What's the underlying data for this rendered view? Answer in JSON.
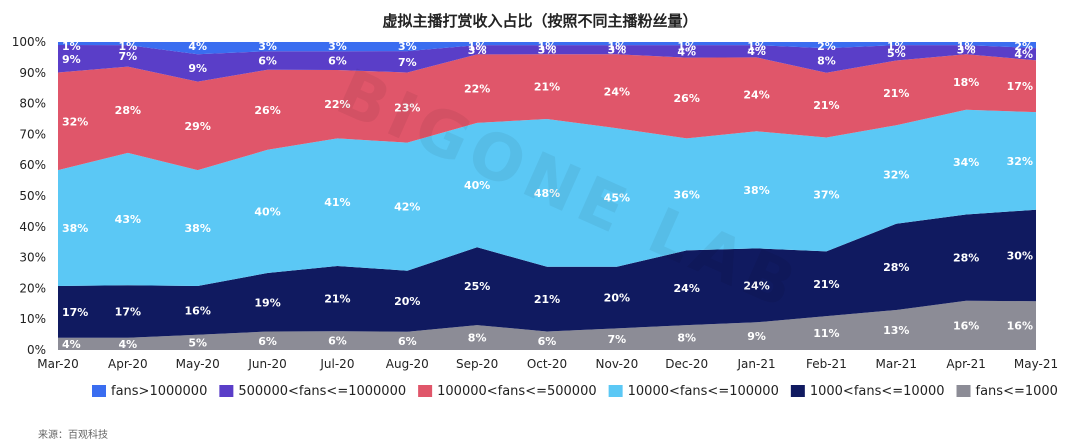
{
  "chart_data": {
    "type": "area",
    "stacked": true,
    "percent": true,
    "title": "虚拟主播打赏收入占比（按照不同主播粉丝量）",
    "categories": [
      "Mar-20",
      "Apr-20",
      "May-20",
      "Jun-20",
      "Jul-20",
      "Aug-20",
      "Sep-20",
      "Oct-20",
      "Nov-20",
      "Dec-20",
      "Jan-21",
      "Feb-21",
      "Mar-21",
      "Apr-21",
      "May-21"
    ],
    "y_ticks": [
      "0%",
      "10%",
      "20%",
      "30%",
      "40%",
      "50%",
      "60%",
      "70%",
      "80%",
      "90%",
      "100%"
    ],
    "ylim": [
      0,
      100
    ],
    "legend_position": "bottom",
    "series": [
      {
        "name": "fans<=1000",
        "color": "#8c8c96",
        "values": [
          4,
          4,
          5,
          6,
          6,
          6,
          8,
          6,
          7,
          8,
          9,
          11,
          13,
          16,
          16
        ]
      },
      {
        "name": "1000<fans<=10000",
        "color": "#101a60",
        "values": [
          17,
          17,
          16,
          19,
          21,
          20,
          25,
          21,
          20,
          24,
          24,
          21,
          28,
          28,
          30
        ]
      },
      {
        "name": "10000<fans<=100000",
        "color": "#5bc8f5",
        "values": [
          38,
          43,
          38,
          40,
          41,
          42,
          40,
          48,
          45,
          36,
          38,
          37,
          32,
          34,
          32
        ]
      },
      {
        "name": "100000<fans<=500000",
        "color": "#e0566a",
        "values": [
          32,
          28,
          29,
          26,
          22,
          23,
          22,
          21,
          24,
          26,
          24,
          21,
          21,
          18,
          17
        ]
      },
      {
        "name": "500000<fans<=1000000",
        "color": "#5a3ec8",
        "values": [
          9,
          7,
          9,
          6,
          6,
          7,
          3,
          3,
          3,
          4,
          4,
          8,
          5,
          3,
          4
        ]
      },
      {
        "name": "fans>1000000",
        "color": "#3a6df0",
        "values": [
          1,
          1,
          4,
          3,
          3,
          3,
          1,
          1,
          1,
          1,
          1,
          2,
          1,
          1,
          2
        ]
      }
    ],
    "legend_labels": [
      "fans>1000000",
      "500000<fans<=1000000",
      "100000<fans<=500000",
      "10000<fans<=100000",
      "1000<fans<=10000",
      "fans<=1000"
    ]
  },
  "watermark": "BIGONE LAB",
  "source": "来源：百观科技"
}
